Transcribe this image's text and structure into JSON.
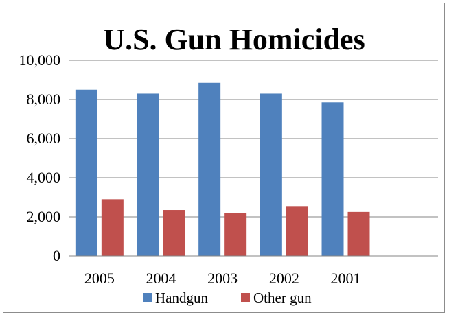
{
  "chart_data": {
    "type": "bar",
    "title": "U.S. Gun Homicides",
    "xlabel": "",
    "ylabel": "",
    "categories": [
      "2005",
      "2004",
      "2003",
      "2002",
      "2001"
    ],
    "series": [
      {
        "name": "Handgun",
        "color": "#4f81bd",
        "values": [
          8500,
          8300,
          8850,
          8300,
          7850
        ]
      },
      {
        "name": "Other gun",
        "color": "#c0504d",
        "values": [
          2900,
          2350,
          2200,
          2550,
          2250
        ]
      }
    ],
    "ylim": [
      0,
      10000
    ],
    "yticks": [
      "0",
      "2,000",
      "4,000",
      "6,000",
      "8,000",
      "10,000"
    ],
    "grid": true,
    "legend": "bottom"
  }
}
